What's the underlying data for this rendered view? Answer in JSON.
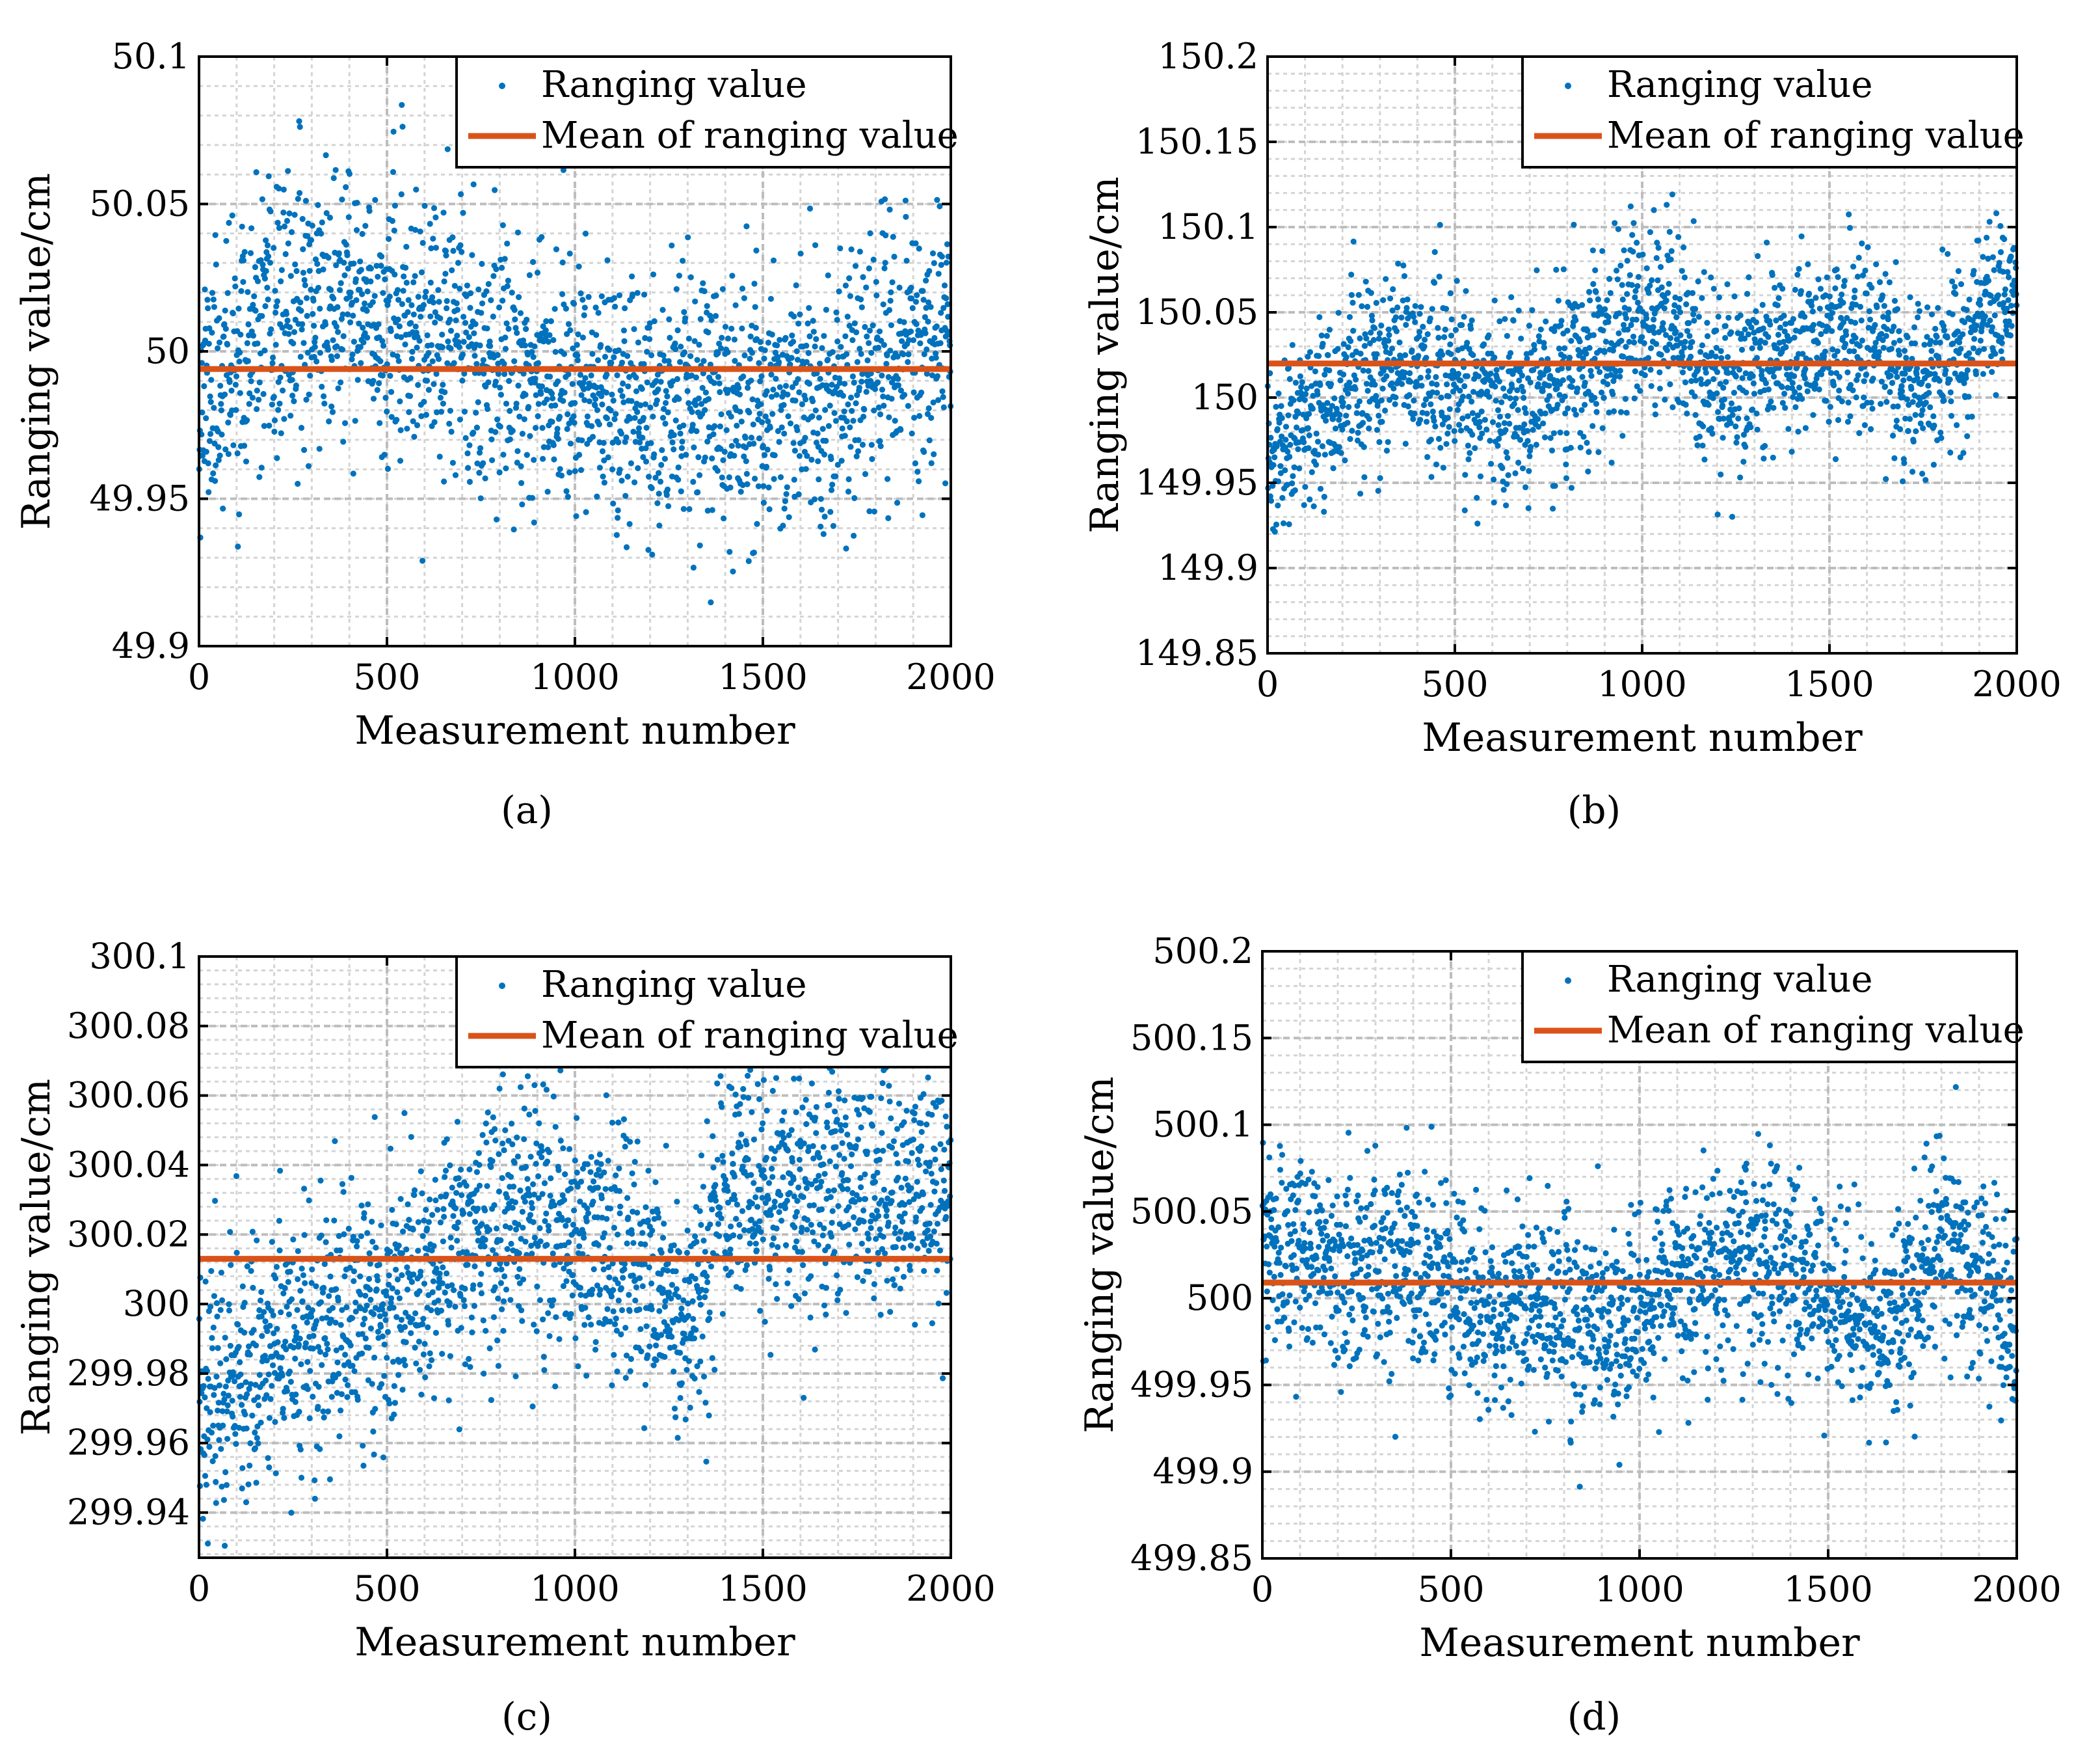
{
  "figure": {
    "legend": {
      "points_label": "Ranging value",
      "mean_label": "Mean of ranging value"
    },
    "colors": {
      "points": "#0072BD",
      "mean": "#D95319",
      "grid": "#bdbdbd",
      "axes": "#000000",
      "background": "#ffffff"
    }
  },
  "chart_data": [
    {
      "id": "a",
      "type": "scatter",
      "caption": "(a)",
      "xlabel": "Measurement number",
      "ylabel": "Ranging value/cm",
      "xlim": [
        0,
        2000
      ],
      "ylim": [
        49.9,
        50.1
      ],
      "xticks": [
        0,
        500,
        1000,
        1500,
        2000
      ],
      "xtick_labels": [
        "0",
        "500",
        "1000",
        "1500",
        "2000"
      ],
      "yticks": [
        49.9,
        49.95,
        50,
        50.05,
        50.1
      ],
      "ytick_labels": [
        "49.9",
        "49.95",
        "50",
        "50.05",
        "50.1"
      ],
      "mean": 49.994,
      "n_points": 2000,
      "std": 0.022,
      "seed": 11,
      "trend": [
        [
          0,
          49.985
        ],
        [
          300,
          50.018
        ],
        [
          600,
          50.005
        ],
        [
          900,
          49.995
        ],
        [
          1200,
          49.982
        ],
        [
          1500,
          49.985
        ],
        [
          1700,
          49.982
        ],
        [
          1850,
          50.002
        ],
        [
          2000,
          50.005
        ]
      ]
    },
    {
      "id": "b",
      "type": "scatter",
      "caption": "(b)",
      "xlabel": "Measurement number",
      "ylabel": "Ranging value/cm",
      "xlim": [
        0,
        2000
      ],
      "ylim": [
        149.85,
        150.2
      ],
      "xticks": [
        0,
        500,
        1000,
        1500,
        2000
      ],
      "xtick_labels": [
        "0",
        "500",
        "1000",
        "1500",
        "2000"
      ],
      "yticks": [
        149.85,
        149.9,
        149.95,
        150,
        150.05,
        150.1,
        150.15,
        150.2
      ],
      "ytick_labels": [
        "149.85",
        "149.9",
        "149.95",
        "150",
        "150.05",
        "150.1",
        "150.15",
        "150.2"
      ],
      "mean": 150.02,
      "n_points": 2000,
      "std": 0.026,
      "seed": 23,
      "trend": [
        [
          0,
          149.955
        ],
        [
          150,
          150.0
        ],
        [
          400,
          150.02
        ],
        [
          650,
          149.99
        ],
        [
          850,
          150.02
        ],
        [
          1050,
          150.055
        ],
        [
          1200,
          150.005
        ],
        [
          1500,
          150.035
        ],
        [
          1750,
          150.01
        ],
        [
          2000,
          150.06
        ]
      ]
    },
    {
      "id": "c",
      "type": "scatter",
      "caption": "(c)",
      "xlabel": "Measurement number",
      "ylabel": "Ranging value/cm",
      "xlim": [
        0,
        2000
      ],
      "ylim": [
        299.927,
        300.1
      ],
      "xticks": [
        0,
        500,
        1000,
        1500,
        2000
      ],
      "xtick_labels": [
        "0",
        "500",
        "1000",
        "1500",
        "2000"
      ],
      "yticks": [
        299.94,
        299.96,
        299.98,
        300,
        300.02,
        300.04,
        300.06,
        300.08,
        300.1
      ],
      "ytick_labels": [
        "299.94",
        "299.96",
        "299.98",
        "300",
        "300.02",
        "300.04",
        "300.06",
        "300.08",
        "300.1"
      ],
      "mean": 300.013,
      "n_points": 2000,
      "std": 0.018,
      "seed": 37,
      "trend": [
        [
          0,
          299.975
        ],
        [
          250,
          299.99
        ],
        [
          500,
          300.0
        ],
        [
          800,
          300.025
        ],
        [
          1050,
          300.02
        ],
        [
          1300,
          299.995
        ],
        [
          1400,
          300.03
        ],
        [
          1700,
          300.035
        ],
        [
          2000,
          300.03
        ]
      ]
    },
    {
      "id": "d",
      "type": "scatter",
      "caption": "(d)",
      "xlabel": "Measurement number",
      "ylabel": "Ranging value/cm",
      "xlim": [
        0,
        2000
      ],
      "ylim": [
        499.85,
        500.2
      ],
      "xticks": [
        0,
        500,
        1000,
        1500,
        2000
      ],
      "xtick_labels": [
        "0",
        "500",
        "1000",
        "1500",
        "2000"
      ],
      "yticks": [
        499.85,
        499.9,
        499.95,
        500,
        500.05,
        500.1,
        500.15,
        500.2
      ],
      "ytick_labels": [
        "499.85",
        "499.9",
        "499.95",
        "500",
        "500.05",
        "500.1",
        "500.15",
        "500.2"
      ],
      "mean": 500.009,
      "n_points": 2000,
      "std": 0.028,
      "seed": 53,
      "trend": [
        [
          0,
          500.025
        ],
        [
          300,
          500.02
        ],
        [
          600,
          499.995
        ],
        [
          900,
          499.985
        ],
        [
          1250,
          500.03
        ],
        [
          1450,
          500.01
        ],
        [
          1650,
          499.975
        ],
        [
          1800,
          500.035
        ],
        [
          2000,
          499.99
        ]
      ]
    }
  ]
}
